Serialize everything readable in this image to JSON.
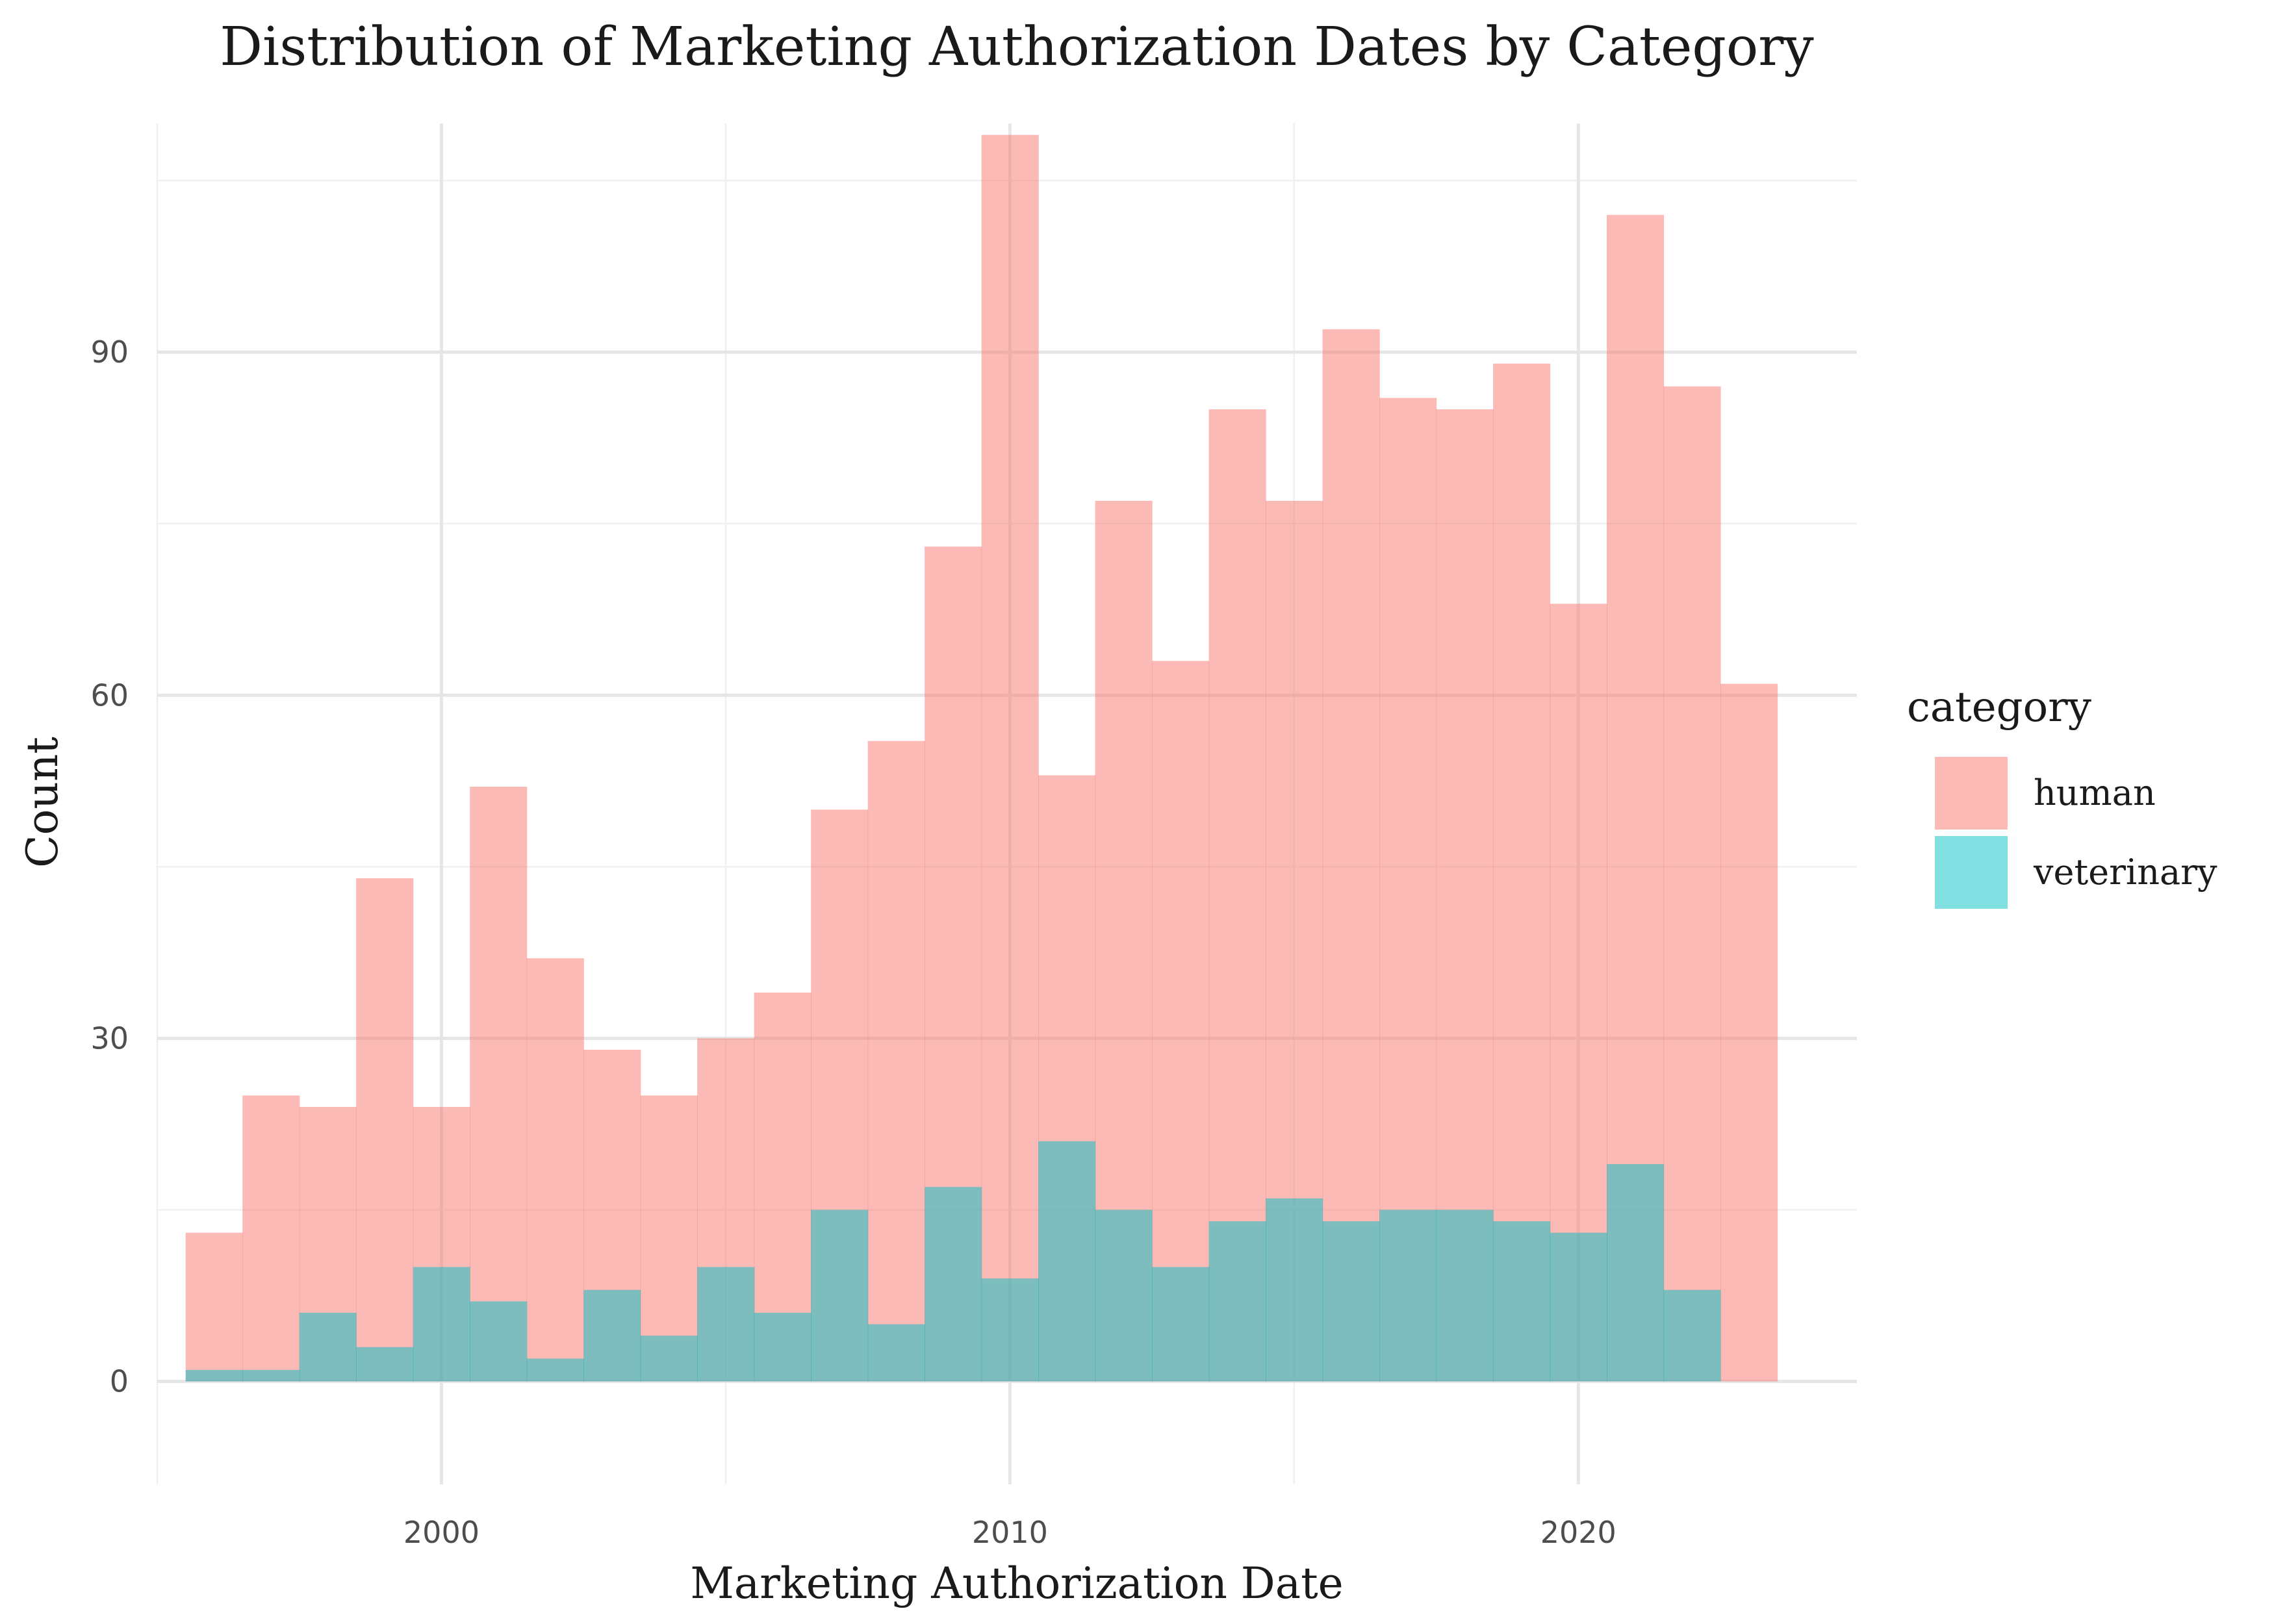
{
  "chart_data": {
    "type": "bar",
    "subtype": "overlaid-histogram",
    "title": "Distribution of Marketing Authorization Dates by Category",
    "xlabel": "Marketing Authorization Date",
    "ylabel": "Count",
    "xlim": [
      1995.0,
      2024.9
    ],
    "ylim": [
      -9,
      110
    ],
    "x_ticks": [
      2000,
      2010,
      2020
    ],
    "y_ticks": [
      0,
      30,
      60,
      90
    ],
    "x_tick_labels": [
      "2000",
      "2010",
      "2020"
    ],
    "y_tick_labels": [
      "0",
      "30",
      "60",
      "90"
    ],
    "grid": true,
    "legend": {
      "title": "category",
      "position": "right"
    },
    "bin_start": 1995.5,
    "bin_width": 1.0,
    "series": [
      {
        "name": "human",
        "color": "#F8766D",
        "opacity": 0.5,
        "values": [
          13,
          25,
          24,
          44,
          24,
          52,
          37,
          29,
          25,
          30,
          34,
          50,
          56,
          73,
          109,
          53,
          77,
          63,
          85,
          77,
          92,
          86,
          85,
          89,
          68,
          102,
          87,
          61
        ]
      },
      {
        "name": "veterinary",
        "color": "#00BFC4",
        "opacity": 0.5,
        "values": [
          1,
          1,
          6,
          3,
          10,
          7,
          2,
          8,
          4,
          10,
          6,
          15,
          5,
          17,
          9,
          21,
          15,
          10,
          14,
          16,
          14,
          15,
          15,
          14,
          13,
          19,
          8,
          0
        ]
      }
    ]
  }
}
